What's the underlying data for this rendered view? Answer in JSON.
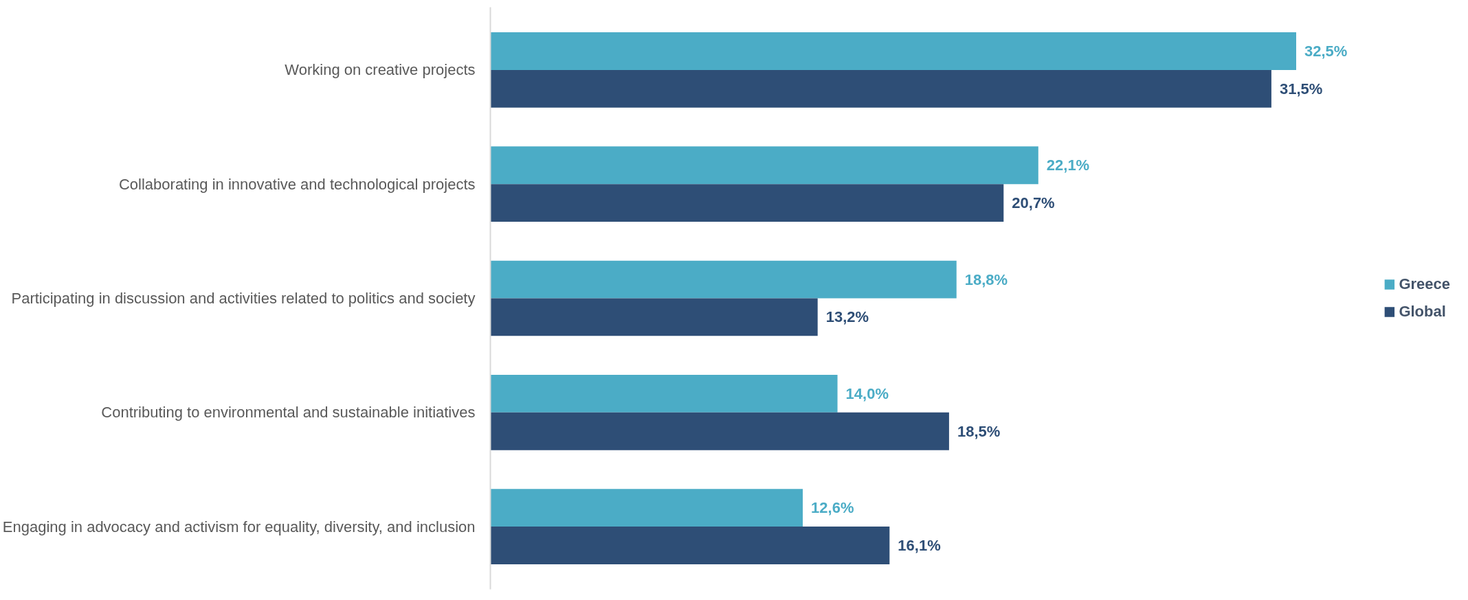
{
  "chart_data": {
    "type": "bar",
    "orientation": "horizontal",
    "categories": [
      "Working on creative projects",
      "Collaborating in innovative and technological projects",
      "Participating in discussion and activities related to politics and society",
      "Contributing to environmental and sustainable initiatives",
      "Engaging in advocacy and activism for equality, diversity, and inclusion"
    ],
    "series": [
      {
        "name": "Greece",
        "color": "#4bacc6",
        "values": [
          32.5,
          22.1,
          18.8,
          14.0,
          12.6
        ],
        "value_labels": [
          "32,5%",
          "22,1%",
          "18,8%",
          "14,0%",
          "12,6%"
        ]
      },
      {
        "name": "Global",
        "color": "#2e4e76",
        "values": [
          31.5,
          20.7,
          13.2,
          18.5,
          16.1
        ],
        "value_labels": [
          "31,5%",
          "20,7%",
          "13,2%",
          "18,5%",
          "16,1%"
        ]
      }
    ],
    "legend": "right",
    "grid": false
  }
}
